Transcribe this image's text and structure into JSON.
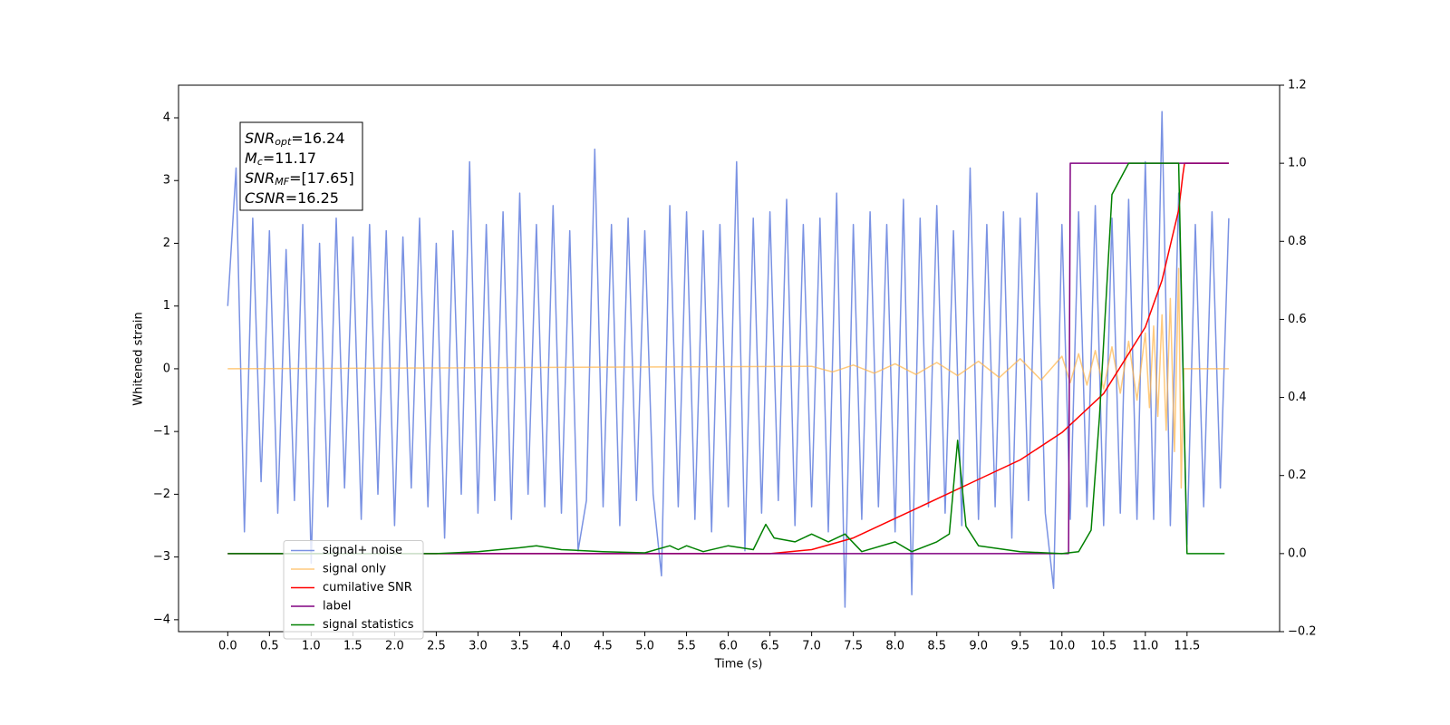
{
  "chart_data": {
    "type": "line",
    "xlabel": "Time (s)",
    "ylabel": "Whitened strain",
    "xlim": [
      -0.59,
      12.61
    ],
    "ylim": [
      -4.19,
      4.52
    ],
    "y2lim": [
      -0.2,
      1.2
    ],
    "xticks": [
      {
        "value": 0,
        "label": "0.0"
      },
      0.5,
      {
        "value": 1,
        "label": "1.0"
      },
      1.5,
      {
        "value": 2,
        "label": "2.0"
      },
      2.5,
      {
        "value": 3,
        "label": "3.0"
      },
      3.5,
      {
        "value": 4,
        "label": "4.0"
      },
      4.5,
      {
        "value": 5,
        "label": "5.0"
      },
      5.5,
      {
        "value": 6,
        "label": "6.0"
      },
      6.5,
      {
        "value": 7,
        "label": "7.0"
      },
      7.5,
      {
        "value": 8,
        "label": "8.0"
      },
      8.5,
      {
        "value": 9,
        "label": "9.0"
      },
      9.5,
      {
        "value": 10,
        "label": "10.0"
      },
      10.5,
      {
        "value": 11,
        "label": "11.0"
      },
      11.5
    ],
    "yticks": [
      {
        "value": -4,
        "label": "−4"
      },
      {
        "value": -3,
        "label": "−3"
      },
      {
        "value": -2,
        "label": "−2"
      },
      {
        "value": -1,
        "label": "−1"
      },
      0,
      1,
      2,
      3,
      4
    ],
    "y2ticks": [
      {
        "value": -0.2,
        "label": "−0.2"
      },
      {
        "value": 0,
        "label": "0.0"
      },
      0.2,
      0.4,
      0.6,
      0.8,
      {
        "value": 1,
        "label": "1.0"
      },
      1.2
    ],
    "legend_loc": "lower left",
    "annotation": [
      {
        "main": "SNR",
        "sub": "opt",
        "rest": "=16.24"
      },
      {
        "main": "M",
        "sub": "c",
        "rest": "=11.17"
      },
      {
        "main": "SNR",
        "sub": "MF",
        "rest": "=[17.65]"
      },
      {
        "main": "CSNR",
        "sub": null,
        "rest": "=16.25"
      }
    ],
    "series": [
      {
        "name": "signal+ noise",
        "color": "#6b86e0",
        "opacity": 0.9,
        "x": [
          0,
          0.1,
          0.2,
          0.3,
          0.4,
          0.5,
          0.6,
          0.7,
          0.8,
          0.9,
          1,
          1.1,
          1.2,
          1.3,
          1.4,
          1.5,
          1.6,
          1.7,
          1.8,
          1.9,
          2,
          2.1,
          2.2,
          2.3,
          2.4,
          2.5,
          2.6,
          2.7,
          2.8,
          2.9,
          3,
          3.1,
          3.2,
          3.3,
          3.4,
          3.5,
          3.6,
          3.7,
          3.8,
          3.9,
          4,
          4.1,
          4.2,
          4.3,
          4.4,
          4.5,
          4.6,
          4.7,
          4.8,
          4.9,
          5,
          5.1,
          5.2,
          5.3,
          5.4,
          5.5,
          5.6,
          5.7,
          5.8,
          5.9,
          6,
          6.1,
          6.2,
          6.3,
          6.4,
          6.5,
          6.6,
          6.7,
          6.8,
          6.9,
          7,
          7.1,
          7.2,
          7.3,
          7.4,
          7.5,
          7.6,
          7.7,
          7.8,
          7.9,
          8,
          8.1,
          8.2,
          8.3,
          8.4,
          8.5,
          8.6,
          8.7,
          8.8,
          8.9,
          9,
          9.1,
          9.2,
          9.3,
          9.4,
          9.5,
          9.6,
          9.7,
          9.8,
          9.9,
          10,
          10.1,
          10.2,
          10.3,
          10.4,
          10.5,
          10.6,
          10.7,
          10.8,
          10.9,
          11,
          11.1,
          11.2,
          11.3,
          11.4,
          11.5,
          11.6,
          11.7,
          11.8,
          11.9,
          12
        ],
        "values": [
          1.0,
          3.2,
          -2.6,
          2.4,
          -1.8,
          2.2,
          -2.3,
          1.9,
          -2.1,
          2.3,
          -3.1,
          2.0,
          -2.2,
          2.4,
          -1.9,
          2.1,
          -2.4,
          2.3,
          -2.0,
          2.2,
          -2.5,
          2.1,
          -1.9,
          2.4,
          -2.2,
          2.0,
          -2.7,
          2.2,
          -2.0,
          3.3,
          -2.3,
          2.3,
          -2.1,
          2.5,
          -2.4,
          2.8,
          -2.0,
          2.3,
          -2.2,
          2.6,
          -2.3,
          2.2,
          -2.9,
          -2.1,
          3.5,
          -2.2,
          2.3,
          -2.5,
          2.4,
          -2.1,
          2.2,
          -2.0,
          -3.3,
          2.6,
          -2.2,
          2.5,
          -2.4,
          2.2,
          -2.6,
          2.3,
          -2.2,
          3.3,
          -2.9,
          2.4,
          -2.3,
          2.5,
          -2.1,
          2.7,
          -2.5,
          2.3,
          -2.2,
          2.4,
          -2.6,
          2.8,
          -3.8,
          2.3,
          -2.4,
          2.5,
          -2.2,
          2.3,
          -2.6,
          2.7,
          -3.6,
          2.4,
          -2.2,
          2.6,
          -2.3,
          2.2,
          -2.5,
          3.2,
          -2.4,
          2.3,
          -2.2,
          2.5,
          -2.7,
          2.4,
          -2.1,
          2.8,
          -2.3,
          -3.5,
          2.3,
          -2.4,
          2.5,
          -2.2,
          2.6,
          -2.5,
          2.4,
          -2.3,
          2.7,
          -2.4,
          3.3,
          -2.4,
          4.1,
          -2.5,
          2.8,
          -2.8,
          2.3,
          -2.2,
          2.5,
          -1.9,
          2.4
        ]
      },
      {
        "name": "signal only",
        "color": "#ffb347",
        "opacity": 0.7,
        "x": [
          0,
          7.0,
          7.25,
          7.5,
          7.75,
          8.0,
          8.25,
          8.5,
          8.75,
          9.0,
          9.25,
          9.5,
          9.75,
          10.0,
          10.1,
          10.2,
          10.3,
          10.4,
          10.5,
          10.6,
          10.7,
          10.8,
          10.9,
          11.0,
          11.05,
          11.1,
          11.15,
          11.2,
          11.25,
          11.3,
          11.35,
          11.4,
          11.43,
          11.46,
          11.5,
          12.0
        ],
        "values": [
          0,
          0.04,
          -0.05,
          0.06,
          -0.07,
          0.08,
          -0.09,
          0.1,
          -0.11,
          0.12,
          -0.14,
          0.16,
          -0.18,
          0.2,
          -0.22,
          0.24,
          -0.26,
          0.29,
          -0.32,
          0.35,
          -0.39,
          0.44,
          -0.5,
          0.57,
          -0.62,
          0.68,
          -0.76,
          0.86,
          -0.98,
          1.12,
          -1.32,
          1.6,
          -1.9,
          0,
          0,
          0
        ]
      },
      {
        "name": "cumilative SNR",
        "color": "#ff0000",
        "axis": "y2",
        "opacity": 1,
        "x": [
          0,
          6.5,
          7.0,
          7.5,
          8.0,
          8.5,
          9.0,
          9.5,
          10.0,
          10.5,
          11.0,
          11.2,
          11.4,
          11.45,
          11.47,
          12.0
        ],
        "values": [
          0,
          0,
          0.01,
          0.04,
          0.09,
          0.14,
          0.19,
          0.24,
          0.31,
          0.41,
          0.58,
          0.7,
          0.88,
          0.97,
          1.0,
          1.0
        ]
      },
      {
        "name": "label",
        "color": "#800080",
        "axis": "y2",
        "opacity": 1,
        "x": [
          0,
          10.08,
          10.1,
          12.0
        ],
        "values": [
          0,
          0,
          1,
          1
        ]
      },
      {
        "name": "signal statistics",
        "color": "#008000",
        "axis": "y2",
        "opacity": 1,
        "x": [
          0,
          2.5,
          3.0,
          3.5,
          3.7,
          4.0,
          4.5,
          5.0,
          5.3,
          5.4,
          5.5,
          5.7,
          6.0,
          6.3,
          6.45,
          6.55,
          6.8,
          7.0,
          7.2,
          7.4,
          7.6,
          8.0,
          8.2,
          8.5,
          8.65,
          8.75,
          8.85,
          9.0,
          9.5,
          10.0,
          10.2,
          10.35,
          10.45,
          10.6,
          10.8,
          11.0,
          11.4,
          11.5,
          11.95
        ],
        "values": [
          0,
          0,
          0.005,
          0.015,
          0.02,
          0.01,
          0.005,
          0.002,
          0.02,
          0.01,
          0.02,
          0.005,
          0.02,
          0.01,
          0.075,
          0.04,
          0.03,
          0.05,
          0.03,
          0.05,
          0.005,
          0.03,
          0.005,
          0.03,
          0.05,
          0.29,
          0.07,
          0.02,
          0.005,
          0,
          0.005,
          0.06,
          0.35,
          0.92,
          1.0,
          1.0,
          1.0,
          0,
          0
        ]
      }
    ]
  }
}
